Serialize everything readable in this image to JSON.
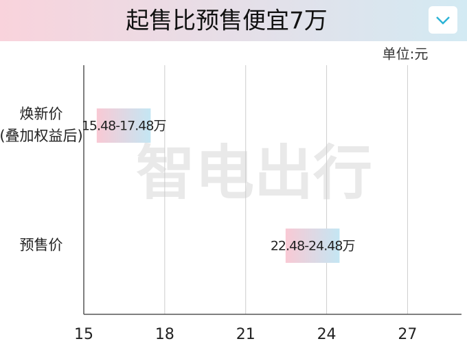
{
  "chart_data": {
    "type": "range-bar",
    "title": "起售比预售便宜7万",
    "unit_label": "单位:元",
    "watermark": "智电出行",
    "categories": [
      [
        "焕新价",
        "(叠加权益后)"
      ],
      [
        "预售价"
      ]
    ],
    "low": [
      15.48,
      22.48
    ],
    "high": [
      17.48,
      24.48
    ],
    "value_labels": [
      "15.48-17.48万",
      "22.48-24.48万"
    ],
    "xlim": [
      15,
      29
    ],
    "xticks": [
      15,
      18,
      21,
      24,
      27
    ],
    "grid": true
  }
}
